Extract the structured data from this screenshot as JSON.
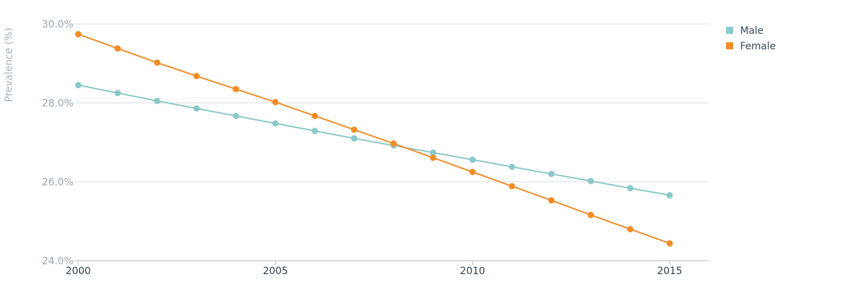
{
  "chart_data": {
    "type": "line",
    "title": "",
    "xlabel": "",
    "ylabel": "Prevalence (%)",
    "x": [
      2000,
      2001,
      2002,
      2003,
      2004,
      2005,
      2006,
      2007,
      2008,
      2009,
      2010,
      2011,
      2012,
      2013,
      2014,
      2015
    ],
    "xlim": [
      2000,
      2016
    ],
    "xticks": [
      2000,
      2005,
      2010,
      2015
    ],
    "xtick_labels": [
      "2000",
      "2005",
      "2010",
      "2015"
    ],
    "ylim": [
      24,
      30
    ],
    "yticks": [
      24,
      26,
      28,
      30
    ],
    "ytick_labels": [
      "24.0%",
      "26.0%",
      "28.0%",
      "30.0%"
    ],
    "grid": true,
    "legend_position": "top-right",
    "series": [
      {
        "name": "Male",
        "color": "#8cc8c8",
        "values": [
          28.45,
          28.25,
          28.05,
          27.86,
          27.67,
          27.48,
          27.29,
          27.1,
          26.92,
          26.74,
          26.56,
          26.38,
          26.2,
          26.02,
          25.84,
          25.66
        ]
      },
      {
        "name": "Female",
        "color": "#f28c28",
        "values": [
          29.74,
          29.38,
          29.02,
          28.68,
          28.35,
          28.02,
          27.67,
          27.32,
          26.97,
          26.61,
          26.25,
          25.89,
          25.53,
          25.16,
          24.8,
          24.44
        ]
      }
    ]
  }
}
